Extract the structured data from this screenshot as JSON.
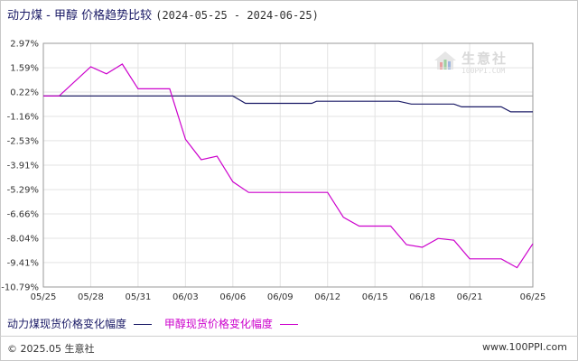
{
  "header": {
    "title_main": "动力煤 - 甲醇 价格趋势比较",
    "title_range": "(2024-05-25 - 2024-06-25)"
  },
  "watermark": {
    "name": "生意社",
    "url": "100PPI.COM"
  },
  "footer": {
    "copyright": "© 2025.05 生意社",
    "site": "www.100PPI.com"
  },
  "colors": {
    "series1": "#1a1a66",
    "series2": "#cc00cc",
    "grid": "#e3e3e3",
    "axis": "#999999"
  },
  "legend": [
    {
      "label": "动力煤现货价格变化幅度",
      "color": "#1a1a66"
    },
    {
      "label": "甲醇现货价格变化幅度",
      "color": "#cc00cc"
    }
  ],
  "chart_data": {
    "type": "line",
    "yticks": [
      "2.97%",
      "1.59%",
      "0.22%",
      "-1.16%",
      "-2.53%",
      "-3.91%",
      "-5.29%",
      "-6.66%",
      "-8.04%",
      "-9.41%",
      "-10.79%"
    ],
    "ytick_values": [
      2.97,
      1.59,
      0.22,
      -1.16,
      -2.53,
      -3.91,
      -5.29,
      -6.66,
      -8.04,
      -9.41,
      -10.79
    ],
    "ylim": [
      -10.79,
      2.97
    ],
    "xticks": [
      "05/25",
      "05/28",
      "05/31",
      "06/03",
      "06/06",
      "06/09",
      "06/12",
      "06/15",
      "06/18",
      "06/21",
      "06/25"
    ],
    "xtick_days": [
      0,
      3,
      6,
      9,
      12,
      15,
      18,
      21,
      24,
      27,
      31
    ],
    "xlim": [
      0,
      31
    ],
    "grid": true,
    "legend_position": "bottom",
    "series": [
      {
        "name": "动力煤现货价格变化幅度",
        "color": "#1a1a66",
        "points": [
          [
            0,
            0
          ],
          [
            12,
            0
          ],
          [
            12.8,
            -0.42
          ],
          [
            16,
            -0.42
          ],
          [
            17,
            -0.42
          ],
          [
            17.3,
            -0.3
          ],
          [
            22.5,
            -0.3
          ],
          [
            23.3,
            -0.46
          ],
          [
            26,
            -0.46
          ],
          [
            26.5,
            -0.62
          ],
          [
            29,
            -0.62
          ],
          [
            29.6,
            -0.9
          ],
          [
            31,
            -0.9
          ]
        ]
      },
      {
        "name": "甲醇现货价格变化幅度",
        "color": "#cc00cc",
        "points": [
          [
            0,
            0
          ],
          [
            1,
            0
          ],
          [
            3,
            1.65
          ],
          [
            4,
            1.25
          ],
          [
            5,
            1.8
          ],
          [
            6,
            0.4
          ],
          [
            7,
            0.4
          ],
          [
            8,
            0.4
          ],
          [
            9,
            -2.45
          ],
          [
            10,
            -3.6
          ],
          [
            11,
            -3.4
          ],
          [
            12,
            -4.85
          ],
          [
            13,
            -5.45
          ],
          [
            14,
            -5.45
          ],
          [
            16,
            -5.45
          ],
          [
            18,
            -5.45
          ],
          [
            19,
            -6.85
          ],
          [
            20,
            -7.35
          ],
          [
            21,
            -7.35
          ],
          [
            22,
            -7.35
          ],
          [
            23,
            -8.4
          ],
          [
            24,
            -8.55
          ],
          [
            25,
            -8.05
          ],
          [
            26,
            -8.15
          ],
          [
            27,
            -9.2
          ],
          [
            28,
            -9.2
          ],
          [
            29,
            -9.2
          ],
          [
            30,
            -9.7
          ],
          [
            31,
            -8.35
          ]
        ]
      }
    ]
  }
}
